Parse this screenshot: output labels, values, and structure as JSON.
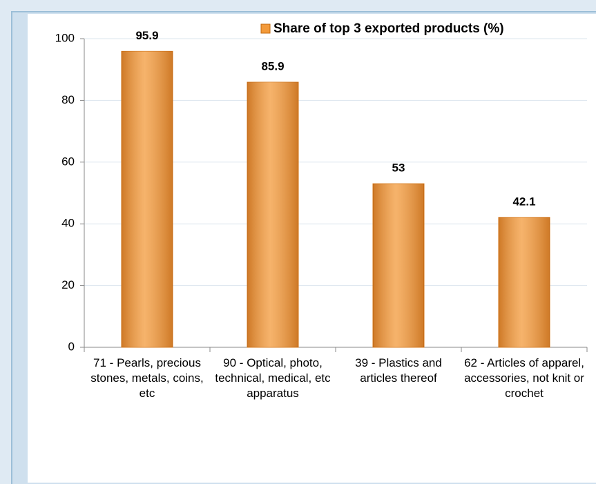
{
  "chart_data": {
    "type": "bar",
    "legend": "Share of top 3 exported products (%)",
    "categories": [
      "71 - Pearls, precious stones, metals, coins, etc",
      "90 - Optical, photo, technical, medical, etc apparatus",
      "39 - Plastics and articles thereof",
      "62 - Articles of apparel, accessories, not knit or crochet"
    ],
    "values": [
      95.9,
      85.9,
      53,
      42.1
    ],
    "color": "#f39a3a",
    "ylim": [
      0,
      100
    ],
    "yticks": [
      0,
      20,
      40,
      60,
      80,
      100
    ],
    "grid": true
  }
}
